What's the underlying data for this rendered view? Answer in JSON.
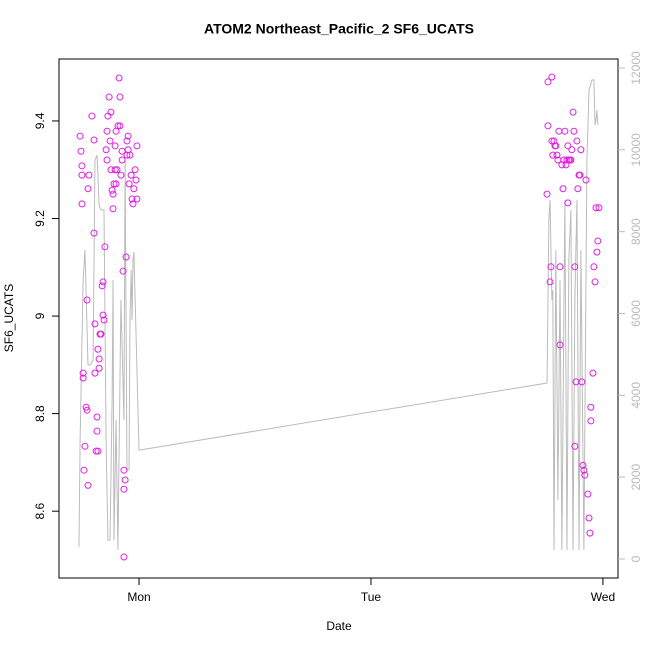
{
  "chart_data": {
    "type": "scatter",
    "title": "ATOM2 Northeast_Pacific_2 SF6_UCATS",
    "xlabel": "Date",
    "ylabel": "SF6_UCATS",
    "xlim": [
      -0.345,
      2.065
    ],
    "ylim": [
      8.463,
      9.527
    ],
    "y2lim": [
      -465,
      12220
    ],
    "xticks": [
      {
        "value": 0,
        "label": "Mon"
      },
      {
        "value": 1,
        "label": "Tue"
      },
      {
        "value": 2,
        "label": "Wed"
      }
    ],
    "yticks": [
      8.6,
      8.8,
      9.0,
      9.2,
      9.4
    ],
    "y2ticks": [
      0,
      2000,
      4000,
      6000,
      8000,
      10000,
      12000
    ],
    "y2color": "#bbbbbb",
    "series": [
      {
        "type": "scatter",
        "color": "#e020e0",
        "x": [
          -0.254,
          -0.25,
          -0.246,
          -0.246,
          -0.246,
          -0.241,
          -0.241,
          -0.233,
          -0.237,
          -0.228,
          -0.224,
          -0.224,
          -0.22,
          -0.216,
          -0.22,
          -0.203,
          -0.194,
          -0.194,
          -0.19,
          -0.19,
          -0.185,
          -0.181,
          -0.181,
          -0.177,
          -0.177,
          -0.172,
          -0.172,
          -0.168,
          -0.164,
          -0.159,
          -0.155,
          -0.155,
          -0.151,
          -0.147,
          -0.142,
          -0.138,
          -0.138,
          -0.134,
          -0.129,
          -0.125,
          -0.121,
          -0.121,
          -0.116,
          -0.112,
          -0.112,
          -0.108,
          -0.103,
          -0.103,
          -0.099,
          -0.099,
          -0.095,
          -0.091,
          -0.086,
          -0.082,
          -0.082,
          -0.078,
          -0.073,
          -0.073,
          -0.069,
          -0.065,
          -0.065,
          -0.065,
          -0.06,
          -0.056,
          -0.052,
          -0.052,
          -0.047,
          -0.047,
          -0.043,
          -0.039,
          -0.034,
          -0.03,
          -0.026,
          -0.022,
          -0.017,
          -0.013,
          -0.009,
          -0.009,
          1.759,
          1.763,
          1.763,
          1.772,
          1.776,
          1.78,
          1.78,
          1.784,
          1.789,
          1.793,
          1.797,
          1.802,
          1.806,
          1.81,
          1.815,
          1.815,
          1.823,
          1.828,
          1.832,
          1.836,
          1.841,
          1.845,
          1.849,
          1.849,
          1.853,
          1.858,
          1.862,
          1.866,
          1.871,
          1.875,
          1.879,
          1.879,
          1.884,
          1.888,
          1.892,
          1.897,
          1.901,
          1.905,
          1.909,
          1.914,
          1.918,
          1.922,
          1.927,
          1.935,
          1.94,
          1.944,
          1.948,
          1.948,
          1.957,
          1.961,
          1.966,
          1.97,
          1.974,
          1.978,
          1.983
        ],
        "values": [
          9.369,
          9.338,
          9.308,
          9.289,
          9.23,
          8.883,
          8.873,
          8.733,
          8.684,
          8.813,
          8.807,
          9.033,
          9.261,
          9.289,
          8.653,
          9.41,
          9.361,
          9.17,
          8.883,
          8.984,
          8.723,
          8.793,
          8.764,
          8.723,
          8.932,
          8.893,
          8.912,
          8.963,
          8.963,
          9.062,
          9.002,
          9.07,
          8.992,
          9.142,
          9.341,
          9.32,
          9.379,
          9.41,
          9.449,
          9.359,
          9.418,
          9.3,
          9.258,
          9.25,
          9.22,
          9.271,
          9.3,
          9.349,
          9.379,
          9.271,
          9.3,
          9.39,
          9.488,
          9.449,
          9.39,
          9.289,
          9.32,
          9.338,
          9.092,
          8.506,
          8.645,
          8.684,
          8.664,
          9.121,
          9.359,
          9.33,
          9.369,
          9.341,
          9.271,
          9.33,
          9.289,
          9.24,
          9.23,
          9.261,
          9.3,
          9.279,
          9.24,
          9.349,
          9.25,
          9.48,
          9.39,
          9.07,
          9.101,
          9.49,
          9.359,
          9.33,
          9.359,
          9.349,
          9.349,
          9.33,
          9.32,
          9.379,
          9.101,
          8.941,
          9.31,
          9.261,
          9.32,
          9.379,
          9.31,
          9.32,
          9.232,
          9.349,
          9.32,
          9.32,
          9.32,
          9.341,
          9.418,
          9.379,
          9.101,
          8.733,
          8.865,
          9.359,
          9.261,
          9.289,
          9.289,
          9.341,
          8.865,
          8.694,
          8.684,
          8.674,
          9.279,
          8.635,
          8.586,
          8.555,
          8.785,
          8.813,
          8.883,
          9.101,
          9.07,
          9.222,
          9.131,
          9.154,
          9.222
        ]
      },
      {
        "type": "line",
        "axis": "y2",
        "color": "#bbbbbb",
        "x": [
          -0.259,
          -0.254,
          -0.241,
          -0.233,
          -0.22,
          -0.211,
          -0.198,
          -0.19,
          -0.181,
          -0.172,
          -0.164,
          -0.151,
          -0.142,
          -0.134,
          -0.125,
          -0.116,
          -0.112,
          -0.108,
          -0.099,
          -0.091,
          -0.078,
          -0.065,
          -0.06,
          -0.052,
          -0.043,
          -0.039,
          -0.034,
          -0.03,
          -0.026,
          -0.022,
          0,
          1.759,
          1.767,
          1.772,
          1.78,
          1.784,
          1.789,
          1.797,
          1.806,
          1.815,
          1.823,
          1.832,
          1.836,
          1.845,
          1.853,
          1.862,
          1.871,
          1.879,
          1.888,
          1.897,
          1.905,
          1.918,
          1.931,
          1.94,
          1.953,
          1.961,
          1.966,
          1.97,
          1.974,
          1.978
        ],
        "values": [
          290,
          2910,
          6820,
          7550,
          4740,
          4740,
          4860,
          9750,
          9870,
          8650,
          8530,
          8530,
          2910,
          460,
          460,
          3890,
          6820,
          460,
          3400,
          220,
          6330,
          3400,
          9750,
          2180,
          2180,
          5840,
          7060,
          5840,
          7310,
          7500,
          2660,
          4300,
          8290,
          8770,
          6330,
          6570,
          220,
          7550,
          1440,
          6820,
          220,
          6330,
          8770,
          220,
          7310,
          8530,
          220,
          6330,
          8770,
          220,
          7550,
          220,
          9750,
          11460,
          11710,
          11710,
          10610,
          10730,
          10970,
          10610
        ]
      }
    ]
  }
}
